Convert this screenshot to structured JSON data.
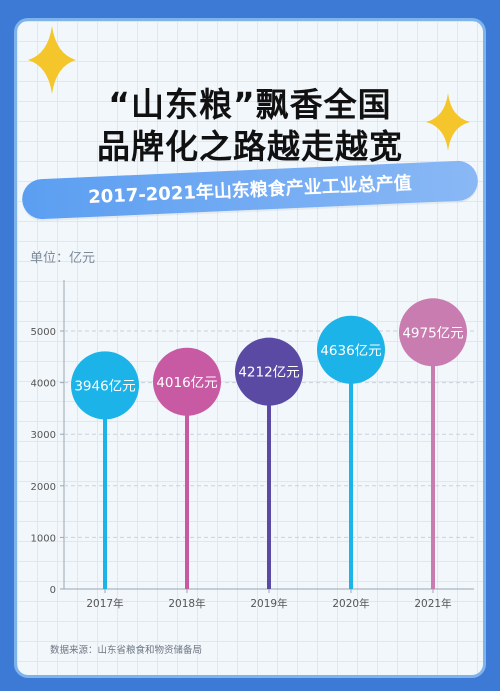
{
  "title": {
    "line1": "“山东粮”飘香全国",
    "line2": "品牌化之路越走越宽"
  },
  "subtitle": "2017-2021年山东粮食产业工业总产值",
  "unit_label": "单位：亿元",
  "source": "数据来源：山东省粮食和物资储备局",
  "chart_data": {
    "type": "bar",
    "title": "2017-2021年山东粮食产业工业总产值",
    "ylabel": "单位：亿元",
    "ylim": [
      0,
      5000
    ],
    "yticks": [
      0,
      1000,
      2000,
      3000,
      4000,
      5000
    ],
    "categories": [
      "2017年",
      "2018年",
      "2019年",
      "2020年",
      "2021年"
    ],
    "values": [
      3946,
      4016,
      4212,
      4636,
      4975
    ],
    "value_labels": [
      "3946亿元",
      "4016亿元",
      "4212亿元",
      "4636亿元",
      "4975亿元"
    ],
    "colors": [
      "#1bb3e8",
      "#c85aa4",
      "#5a4aa4",
      "#1bb3e8",
      "#c97cb0"
    ],
    "grid": true
  }
}
